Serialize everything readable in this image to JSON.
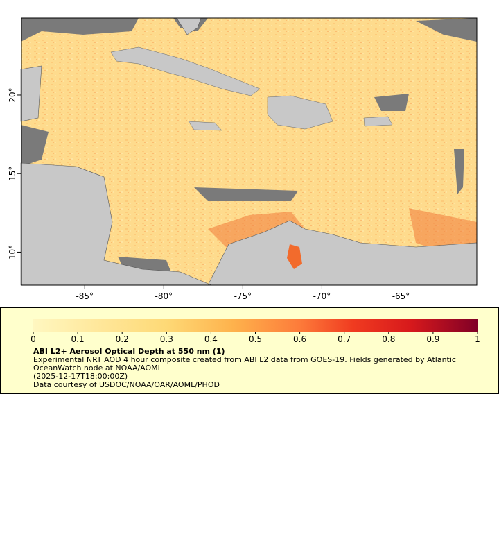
{
  "map": {
    "lonlim": [
      -89,
      -60.2
    ],
    "latlim": [
      7.9,
      24.9
    ],
    "lon_ticks": [
      {
        "value": -85,
        "label": "-85°"
      },
      {
        "value": -80,
        "label": "-80°"
      },
      {
        "value": -75,
        "label": "-75°"
      },
      {
        "value": -70,
        "label": "-70°"
      },
      {
        "value": -65,
        "label": "-65°"
      }
    ],
    "lat_ticks": [
      {
        "value": 10,
        "label": "10°"
      },
      {
        "value": 15,
        "label": "15°"
      },
      {
        "value": 20,
        "label": "20°"
      }
    ]
  },
  "legend": {
    "colorbar": {
      "range": [
        0,
        1
      ],
      "ticks": [
        0,
        0.1,
        0.2,
        0.3,
        0.4,
        0.5,
        0.6,
        0.7,
        0.8,
        0.9,
        1
      ]
    },
    "title": "ABI L2+ Aerosol Optical Depth at 550 nm (1)",
    "description": "Experimental NRT AOD 4 hour composite created from ABI L2 data from GOES-19. Fields generated by Atlantic OceanWatch node at NOAA/AOML",
    "time": "(2025-12-17T18:00:00Z)",
    "credit": "Data courtesy of USDOC/NOAA/OAR/AOML/PHOD"
  }
}
